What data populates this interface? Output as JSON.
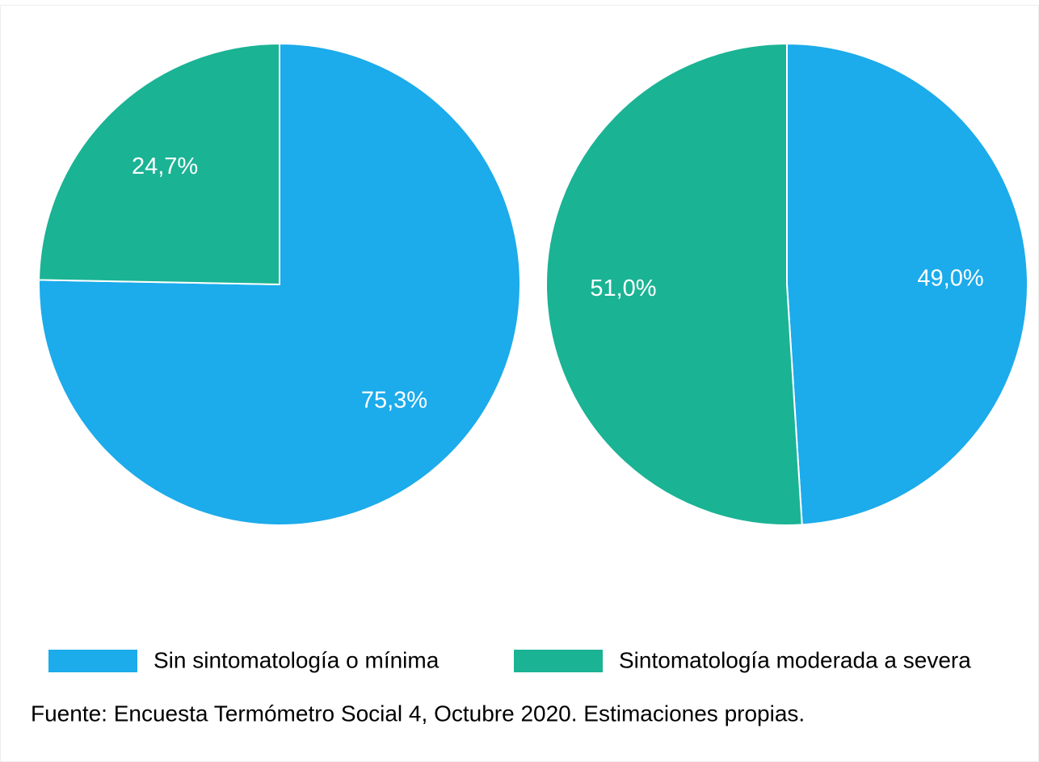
{
  "chart_data": [
    {
      "type": "pie",
      "values": [
        75.3,
        24.7
      ],
      "value_labels": [
        "75,3%",
        "24,7%"
      ]
    },
    {
      "type": "pie",
      "values": [
        49.0,
        51.0
      ],
      "value_labels": [
        "49,0%",
        "51,0%"
      ]
    }
  ],
  "legend": {
    "categories": [
      "Sin sintomatología o mínima",
      "Sintomatología moderada a severa"
    ],
    "colors": [
      "#1cabeb",
      "#1ab394"
    ]
  },
  "source": "Fuente: Encuesta Termómetro Social 4, Octubre 2020. Estimaciones propias."
}
